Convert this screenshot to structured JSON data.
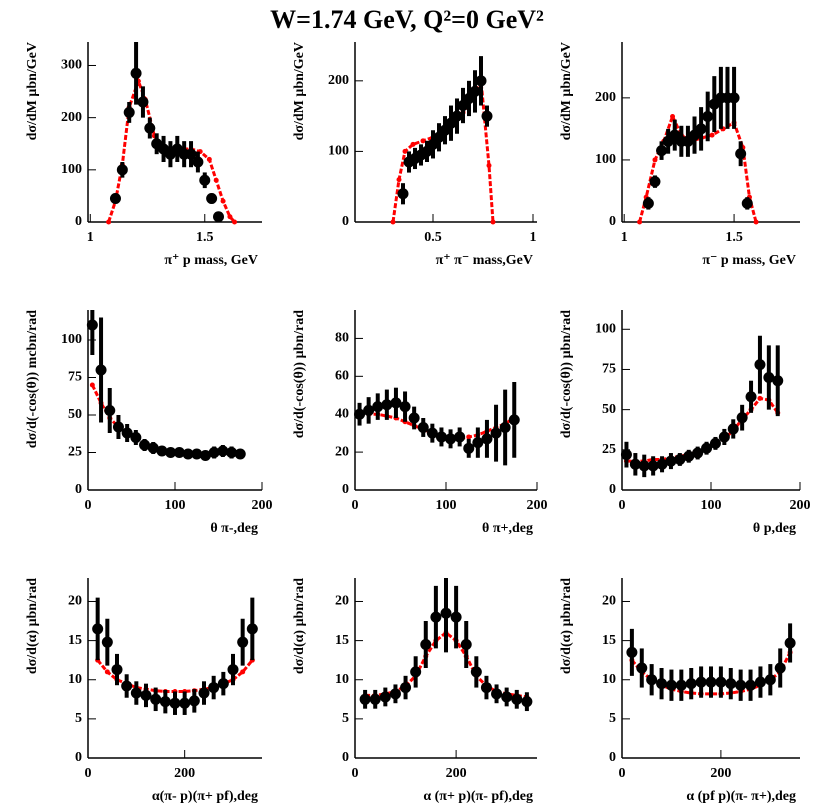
{
  "title": "W=1.74 GeV, Q²=0 GeV²",
  "chart_data": [
    {
      "type": "errorbar",
      "xlabel": "π⁺ p mass, GeV",
      "ylabel": "dσ/dM μbn/GeV",
      "xlim": [
        0.99,
        1.75
      ],
      "xticks": [
        1,
        1.5
      ],
      "ylim": [
        0,
        345
      ],
      "yticks": [
        0,
        100,
        200,
        300
      ],
      "data": {
        "color": "#000000",
        "x": [
          1.11,
          1.14,
          1.17,
          1.2,
          1.23,
          1.26,
          1.29,
          1.32,
          1.35,
          1.38,
          1.41,
          1.44,
          1.47,
          1.5,
          1.53,
          1.56
        ],
        "values": [
          45,
          100,
          210,
          285,
          230,
          180,
          150,
          140,
          130,
          140,
          130,
          130,
          115,
          80,
          45,
          10
        ],
        "errors": [
          10,
          15,
          20,
          60,
          30,
          20,
          20,
          25,
          25,
          25,
          25,
          25,
          20,
          15,
          10,
          5
        ]
      },
      "model": {
        "color": "#ff0000",
        "x": [
          1.08,
          1.11,
          1.14,
          1.17,
          1.21,
          1.24,
          1.28,
          1.32,
          1.36,
          1.4,
          1.44,
          1.48,
          1.52,
          1.55,
          1.58,
          1.61,
          1.63
        ],
        "values": [
          0,
          40,
          110,
          220,
          270,
          235,
          165,
          140,
          135,
          140,
          140,
          135,
          120,
          80,
          40,
          10,
          0
        ]
      }
    },
    {
      "type": "errorbar",
      "xlabel": "π⁺ π⁻ mass,GeV",
      "ylabel": "dσ/dM μbn/GeV",
      "xlim": [
        0.11,
        1.02
      ],
      "xticks": [
        0.5,
        1
      ],
      "ylim": [
        0,
        255
      ],
      "yticks": [
        0,
        100,
        200
      ],
      "data": {
        "color": "#000000",
        "x": [
          0.35,
          0.38,
          0.41,
          0.44,
          0.47,
          0.5,
          0.53,
          0.56,
          0.59,
          0.62,
          0.65,
          0.68,
          0.71,
          0.74,
          0.77
        ],
        "values": [
          40,
          85,
          90,
          95,
          100,
          110,
          120,
          130,
          140,
          150,
          165,
          175,
          185,
          200,
          150
        ],
        "errors": [
          15,
          15,
          15,
          15,
          15,
          20,
          20,
          20,
          25,
          25,
          25,
          25,
          30,
          35,
          15
        ]
      },
      "model": {
        "color": "#ff0000",
        "x": [
          0.3,
          0.33,
          0.36,
          0.4,
          0.45,
          0.5,
          0.55,
          0.6,
          0.65,
          0.7,
          0.74,
          0.78,
          0.8
        ],
        "values": [
          0,
          60,
          100,
          110,
          115,
          120,
          130,
          140,
          155,
          175,
          200,
          80,
          0
        ]
      }
    },
    {
      "type": "errorbar",
      "xlabel": "π⁻ p mass, GeV",
      "ylabel": "dσ/dM μbn/GeV",
      "xlim": [
        0.99,
        1.8
      ],
      "xticks": [
        1,
        1.5
      ],
      "ylim": [
        0,
        290
      ],
      "yticks": [
        0,
        100,
        200
      ],
      "data": {
        "color": "#000000",
        "x": [
          1.11,
          1.14,
          1.17,
          1.2,
          1.23,
          1.26,
          1.29,
          1.32,
          1.35,
          1.38,
          1.41,
          1.44,
          1.47,
          1.5,
          1.53,
          1.56
        ],
        "values": [
          30,
          65,
          115,
          130,
          140,
          130,
          130,
          140,
          150,
          170,
          190,
          200,
          200,
          200,
          110,
          30
        ],
        "errors": [
          10,
          10,
          15,
          20,
          25,
          25,
          25,
          30,
          35,
          40,
          45,
          50,
          50,
          50,
          20,
          10
        ]
      },
      "model": {
        "color": "#ff0000",
        "x": [
          1.07,
          1.1,
          1.14,
          1.18,
          1.22,
          1.26,
          1.3,
          1.35,
          1.4,
          1.45,
          1.5,
          1.54,
          1.57,
          1.6
        ],
        "values": [
          0,
          40,
          100,
          130,
          170,
          140,
          130,
          135,
          140,
          150,
          160,
          120,
          40,
          0
        ]
      }
    },
    {
      "type": "errorbar",
      "xlabel": "θ π-,deg",
      "ylabel": "dσ/d(-cos(θ)) mcbn/rad",
      "xlim": [
        0,
        200
      ],
      "xticks": [
        0,
        100,
        200
      ],
      "ylim": [
        0,
        120
      ],
      "yticks": [
        0,
        25,
        50,
        75,
        100
      ],
      "data": {
        "color": "#000000",
        "x": [
          5,
          15,
          25,
          35,
          45,
          55,
          65,
          75,
          85,
          95,
          105,
          115,
          125,
          135,
          145,
          155,
          165,
          175
        ],
        "values": [
          110,
          80,
          53,
          42,
          38,
          35,
          30,
          28,
          26,
          25,
          25,
          24,
          24,
          23,
          25,
          26,
          25,
          24
        ],
        "errors": [
          20,
          35,
          15,
          8,
          6,
          5,
          4,
          4,
          3,
          3,
          3,
          3,
          3,
          3,
          4,
          4,
          4,
          3
        ]
      },
      "model": {
        "color": "#ff0000",
        "x": [
          5,
          15,
          25,
          35,
          45,
          55,
          65,
          75,
          85,
          95,
          105,
          115,
          125,
          135,
          145,
          155,
          165,
          175
        ],
        "values": [
          70,
          58,
          48,
          42,
          38,
          34,
          31,
          29,
          27,
          26,
          25,
          24,
          24,
          24,
          24,
          25,
          25,
          24
        ]
      }
    },
    {
      "type": "errorbar",
      "xlabel": "θ π+,deg",
      "ylabel": "dσ/d(-cos(θ)) μbn/rad",
      "xlim": [
        0,
        200
      ],
      "xticks": [
        0,
        100,
        200
      ],
      "ylim": [
        0,
        95
      ],
      "yticks": [
        0,
        20,
        40,
        60,
        80
      ],
      "data": {
        "color": "#000000",
        "x": [
          5,
          15,
          25,
          35,
          45,
          55,
          65,
          75,
          85,
          95,
          105,
          115,
          125,
          135,
          145,
          155,
          165,
          175
        ],
        "values": [
          40,
          42,
          44,
          45,
          46,
          44,
          38,
          33,
          30,
          28,
          27,
          28,
          22,
          25,
          27,
          30,
          33,
          37
        ],
        "errors": [
          6,
          7,
          7,
          8,
          8,
          8,
          6,
          5,
          5,
          5,
          5,
          5,
          5,
          8,
          10,
          15,
          20,
          20
        ]
      },
      "model": {
        "color": "#ff0000",
        "x": [
          5,
          15,
          25,
          35,
          45,
          55,
          65,
          75,
          85,
          95,
          105,
          115,
          125,
          135,
          145,
          155,
          165,
          175
        ],
        "values": [
          40,
          40,
          40,
          39,
          38,
          36,
          34,
          32,
          30,
          28,
          27,
          27,
          28,
          29,
          31,
          33,
          35,
          38
        ]
      }
    },
    {
      "type": "errorbar",
      "xlabel": "θ p,deg",
      "ylabel": "dσ/d(-cos(θ)) μbn/rad",
      "xlim": [
        0,
        200
      ],
      "xticks": [
        0,
        100,
        200
      ],
      "ylim": [
        0,
        112
      ],
      "yticks": [
        0,
        25,
        50,
        75,
        100
      ],
      "data": {
        "color": "#000000",
        "x": [
          5,
          15,
          25,
          35,
          45,
          55,
          65,
          75,
          85,
          95,
          105,
          115,
          125,
          135,
          145,
          155,
          165,
          175
        ],
        "values": [
          22,
          16,
          15,
          15,
          16,
          18,
          19,
          21,
          23,
          26,
          29,
          33,
          38,
          45,
          58,
          78,
          70,
          68
        ],
        "errors": [
          8,
          7,
          7,
          6,
          5,
          5,
          4,
          4,
          4,
          4,
          4,
          5,
          6,
          8,
          10,
          18,
          20,
          22
        ]
      },
      "model": {
        "color": "#ff0000",
        "x": [
          5,
          15,
          25,
          35,
          45,
          55,
          65,
          75,
          85,
          95,
          105,
          115,
          125,
          135,
          145,
          155,
          165,
          175
        ],
        "values": [
          18,
          18,
          18,
          19,
          19,
          20,
          21,
          22,
          24,
          26,
          29,
          32,
          37,
          44,
          50,
          57,
          56,
          48
        ]
      }
    },
    {
      "type": "errorbar",
      "xlabel": "α(π- p)(π+ pf),deg",
      "ylabel": "dσ/d(α) μbn/rad",
      "xlim": [
        0,
        360
      ],
      "xticks": [
        0,
        200
      ],
      "ylim": [
        0,
        23
      ],
      "yticks": [
        0,
        5,
        10,
        15,
        20
      ],
      "data": {
        "color": "#000000",
        "x": [
          20,
          40,
          60,
          80,
          100,
          120,
          140,
          160,
          180,
          200,
          220,
          240,
          260,
          280,
          300,
          320,
          340
        ],
        "values": [
          16.5,
          14.8,
          11.3,
          9.2,
          8.3,
          8.0,
          7.5,
          7.2,
          7.0,
          7.0,
          7.3,
          8.3,
          9.0,
          9.5,
          11.3,
          14.8,
          16.5
        ],
        "errors": [
          4,
          3,
          2,
          1.5,
          1.5,
          1.5,
          1.5,
          1.5,
          1.5,
          1.5,
          1.5,
          1.5,
          1.5,
          1.5,
          2,
          3,
          4
        ]
      },
      "model": {
        "color": "#ff0000",
        "x": [
          20,
          40,
          60,
          80,
          100,
          120,
          140,
          160,
          180,
          200,
          220,
          240,
          260,
          280,
          300,
          320,
          340
        ],
        "values": [
          12.5,
          11,
          10,
          9.5,
          9,
          8.8,
          8.6,
          8.5,
          8.5,
          8.5,
          8.6,
          8.8,
          9,
          9.5,
          10,
          11,
          12.5
        ]
      }
    },
    {
      "type": "errorbar",
      "xlabel": "α (π+ p)(π- pf),deg",
      "ylabel": "dσ/d(α) μbn/rad",
      "xlim": [
        0,
        360
      ],
      "xticks": [
        0,
        200
      ],
      "ylim": [
        0,
        23
      ],
      "yticks": [
        0,
        5,
        10,
        15,
        20
      ],
      "data": {
        "color": "#000000",
        "x": [
          20,
          40,
          60,
          80,
          100,
          120,
          140,
          160,
          180,
          200,
          220,
          240,
          260,
          280,
          300,
          320,
          340
        ],
        "values": [
          7.5,
          7.5,
          7.8,
          8.2,
          9,
          11,
          14.5,
          18,
          18.5,
          18,
          14.5,
          11,
          9,
          8.2,
          7.8,
          7.5,
          7.2
        ],
        "errors": [
          1.2,
          1.2,
          1.2,
          1.2,
          1.5,
          2,
          3,
          4,
          5,
          4,
          3,
          2,
          1.5,
          1.2,
          1.2,
          1.2,
          1.2
        ]
      },
      "model": {
        "color": "#ff0000",
        "x": [
          20,
          40,
          60,
          80,
          100,
          120,
          140,
          160,
          180,
          200,
          220,
          240,
          260,
          280,
          300,
          320,
          340
        ],
        "values": [
          8,
          8,
          8.2,
          8.5,
          9.2,
          10.5,
          13,
          15,
          16,
          15,
          13,
          10.5,
          9.2,
          8.5,
          8.2,
          8,
          7.8
        ]
      }
    },
    {
      "type": "errorbar",
      "xlabel": "α (pf p)(π- π+),deg",
      "ylabel": "dσ/d(α) μbn/rad",
      "xlim": [
        0,
        360
      ],
      "xticks": [
        0,
        200
      ],
      "ylim": [
        0,
        23
      ],
      "yticks": [
        0,
        5,
        10,
        15,
        20
      ],
      "data": {
        "color": "#000000",
        "x": [
          20,
          40,
          60,
          80,
          100,
          120,
          140,
          160,
          180,
          200,
          220,
          240,
          260,
          280,
          300,
          320,
          340
        ],
        "values": [
          13.5,
          11.5,
          10,
          9.5,
          9.3,
          9.3,
          9.5,
          9.7,
          9.7,
          9.7,
          9.5,
          9.3,
          9.3,
          9.7,
          10,
          11.5,
          14.7
        ],
        "errors": [
          3,
          2.5,
          2,
          2,
          2,
          2,
          2,
          2,
          2,
          2,
          2,
          2,
          2,
          2,
          2,
          2.5,
          2.5
        ]
      },
      "model": {
        "color": "#ff0000",
        "x": [
          20,
          40,
          60,
          80,
          100,
          120,
          140,
          160,
          180,
          200,
          220,
          240,
          260,
          280,
          300,
          320,
          340
        ],
        "values": [
          12.5,
          11,
          10,
          9.3,
          8.8,
          8.5,
          8.3,
          8.2,
          8.2,
          8.2,
          8.3,
          8.5,
          8.8,
          9.3,
          10,
          11,
          13.5
        ]
      }
    }
  ]
}
